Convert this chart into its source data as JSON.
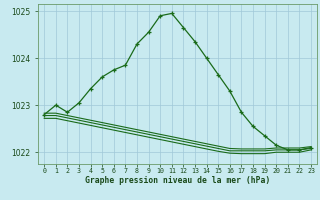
{
  "title": "Graphe pression niveau de la mer (hPa)",
  "background_color": "#c8eaf0",
  "grid_color": "#a0c8d8",
  "line_color": "#1a6b1a",
  "x_hours": [
    0,
    1,
    2,
    3,
    4,
    5,
    6,
    7,
    8,
    9,
    10,
    11,
    12,
    13,
    14,
    15,
    16,
    17,
    18,
    19,
    20,
    21,
    22,
    23
  ],
  "main_line": [
    1022.8,
    1023.0,
    1022.85,
    1023.05,
    1023.35,
    1023.6,
    1023.75,
    1023.85,
    1024.3,
    1024.55,
    1024.9,
    1024.95,
    1024.65,
    1024.35,
    1024.0,
    1023.65,
    1023.3,
    1022.85,
    1022.55,
    1022.35,
    1022.15,
    1022.05,
    1022.05,
    1022.1
  ],
  "flat_line1": [
    1022.78,
    1022.78,
    1022.73,
    1022.68,
    1022.63,
    1022.58,
    1022.53,
    1022.48,
    1022.43,
    1022.38,
    1022.33,
    1022.28,
    1022.23,
    1022.18,
    1022.13,
    1022.08,
    1022.03,
    1022.03,
    1022.03,
    1022.03,
    1022.05,
    1022.05,
    1022.05,
    1022.08
  ],
  "flat_line2": [
    1022.72,
    1022.72,
    1022.67,
    1022.62,
    1022.57,
    1022.52,
    1022.47,
    1022.42,
    1022.37,
    1022.32,
    1022.27,
    1022.22,
    1022.17,
    1022.12,
    1022.07,
    1022.02,
    1021.98,
    1021.97,
    1021.97,
    1021.97,
    1022.0,
    1022.0,
    1022.0,
    1022.05
  ],
  "flat_line3": [
    1022.83,
    1022.83,
    1022.78,
    1022.73,
    1022.68,
    1022.63,
    1022.58,
    1022.53,
    1022.48,
    1022.43,
    1022.38,
    1022.33,
    1022.28,
    1022.23,
    1022.18,
    1022.13,
    1022.08,
    1022.07,
    1022.07,
    1022.07,
    1022.09,
    1022.09,
    1022.09,
    1022.12
  ],
  "ylim": [
    1021.75,
    1025.15
  ],
  "yticks": [
    1022,
    1023,
    1024,
    1025
  ],
  "xlim": [
    -0.5,
    23.5
  ],
  "xtick_labels": [
    "0",
    "1",
    "2",
    "3",
    "4",
    "5",
    "6",
    "7",
    "8",
    "9",
    "10",
    "11",
    "12",
    "13",
    "14",
    "15",
    "16",
    "17",
    "18",
    "19",
    "20",
    "21",
    "22",
    "23"
  ]
}
